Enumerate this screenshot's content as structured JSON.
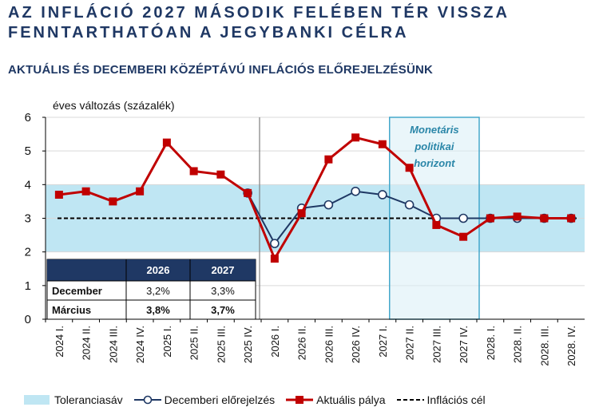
{
  "headline": [
    "AZ INFLÁCIÓ 2027 MÁSODIK FELÉBEN TÉR VISSZA",
    "FENNTARTHATÓAN A JEGYBANKI CÉLRA"
  ],
  "subtitle": "AKTUÁLIS ÉS DECEMBERI KÖZÉPTÁVÚ INFLÁCIÓS ELŐREJELZÉSÜNK",
  "chart_data": {
    "type": "line",
    "ylabel": "éves változás (százalék)",
    "ylim": [
      0,
      6
    ],
    "yticks": [
      "0",
      "1",
      "2",
      "3",
      "4",
      "5",
      "6"
    ],
    "categories": [
      "2024 I.",
      "2024 II.",
      "2024 III.",
      "2024 IV.",
      "2025 I.",
      "2025 II.",
      "2025 III.",
      "2025 IV.",
      "2026 I.",
      "2026 II.",
      "2026 III.",
      "2026 IV.",
      "2027 I.",
      "2027 II.",
      "2027 III.",
      "2027 IV.",
      "2028. I.",
      "2028. II.",
      "2028. III.",
      "2028. IV."
    ],
    "tolerance_band": [
      2,
      4
    ],
    "target": 3,
    "series": [
      {
        "name": "Aktuális pálya",
        "color": "#c00000",
        "marker": "square",
        "values": [
          3.7,
          3.8,
          3.5,
          3.8,
          5.25,
          4.4,
          4.3,
          3.75,
          1.8,
          3.15,
          4.75,
          5.4,
          5.2,
          4.5,
          2.8,
          2.45,
          3.0,
          3.05,
          3.0,
          3.0
        ]
      },
      {
        "name": "Decemberi előrejelzés",
        "color": "#1f3864",
        "marker": "circle",
        "values": [
          null,
          null,
          null,
          null,
          null,
          null,
          null,
          3.75,
          2.25,
          3.3,
          3.4,
          3.8,
          3.7,
          3.4,
          3.0,
          3.0,
          3.0,
          3.0,
          3.0,
          3.0
        ]
      }
    ],
    "horizon": {
      "label": [
        "Monetáris",
        "politikai",
        "horizont"
      ],
      "from_index": 13,
      "to_index": 16
    },
    "divider_after_index": 7,
    "table": {
      "columns": [
        "",
        "2026",
        "2027"
      ],
      "rows": [
        {
          "label": "December",
          "values": [
            "3,2%",
            "3,3%"
          ],
          "bold": false
        },
        {
          "label": "Március",
          "values": [
            "3,8%",
            "3,7%"
          ],
          "bold": true
        }
      ]
    }
  },
  "legend": [
    {
      "key": "band",
      "label": "Toleranciasáv"
    },
    {
      "key": "december",
      "label": "Decemberi előrejelzés"
    },
    {
      "key": "current",
      "label": "Aktuális pálya"
    },
    {
      "key": "target",
      "label": "Inflációs cél"
    }
  ],
  "colors": {
    "band": "#bfe6f3",
    "current": "#c00000",
    "december": "#1f3864",
    "table_header": "#1f3864",
    "horizon_border": "#3aa3c8",
    "horizon_fill": "#d9eef5"
  }
}
